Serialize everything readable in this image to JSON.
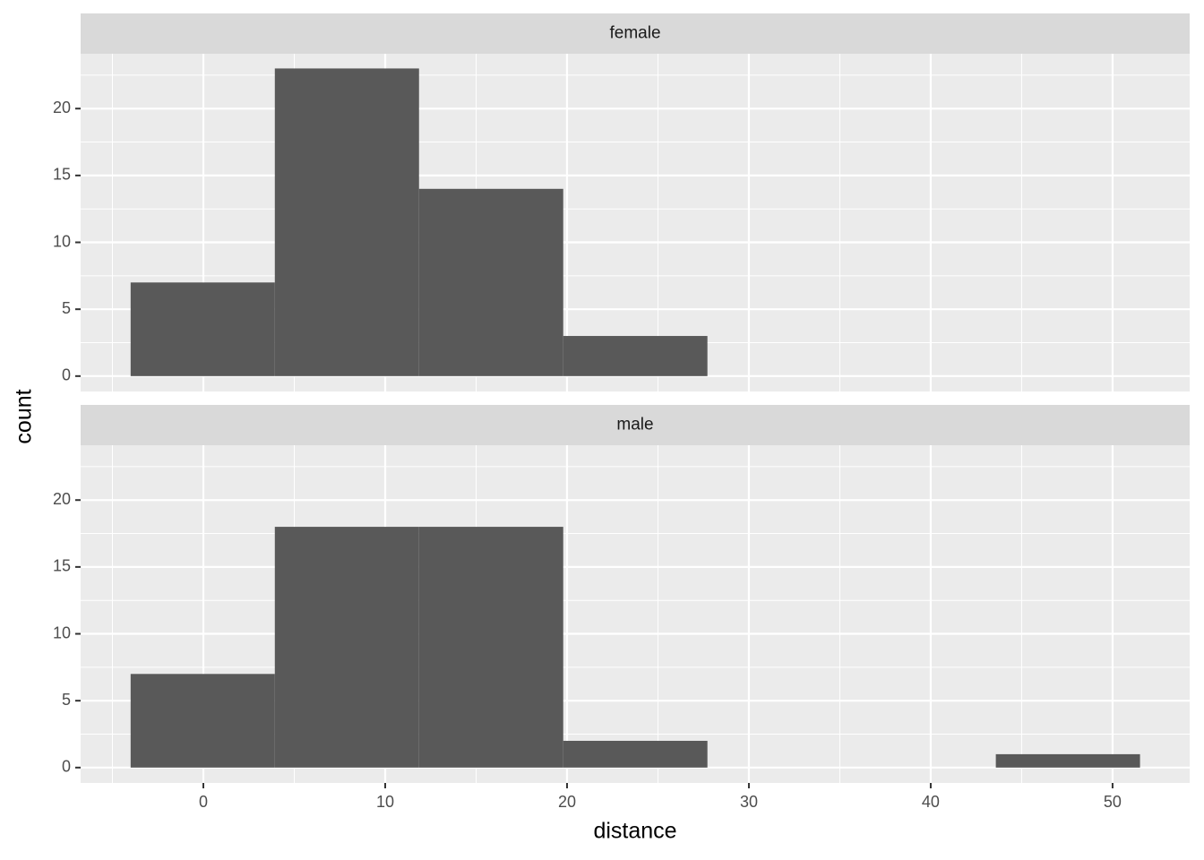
{
  "chart_data": {
    "type": "histogram",
    "x_label": "distance",
    "y_label": "count",
    "bins": [
      -4,
      3.93,
      11.86,
      19.79,
      27.72,
      35.65,
      43.58,
      51.51
    ],
    "panels": [
      {
        "title": "female",
        "values": [
          7,
          23,
          14,
          3,
          0,
          0,
          0
        ]
      },
      {
        "title": "male",
        "values": [
          7,
          18,
          18,
          2,
          0,
          0,
          1
        ]
      }
    ],
    "color": "#595959",
    "xlim": [
      -6.75,
      54.24
    ],
    "xticks": [
      0,
      10,
      20,
      30,
      40,
      50
    ],
    "minor_xticks": [
      -5,
      5,
      15,
      25,
      35,
      45
    ],
    "ylim": [
      -1.15,
      24.1
    ],
    "yticks": [
      0,
      5,
      10,
      15,
      20
    ],
    "minor_yticks": [
      2.5,
      7.5,
      12.5,
      17.5,
      22.5
    ],
    "grid": true
  }
}
